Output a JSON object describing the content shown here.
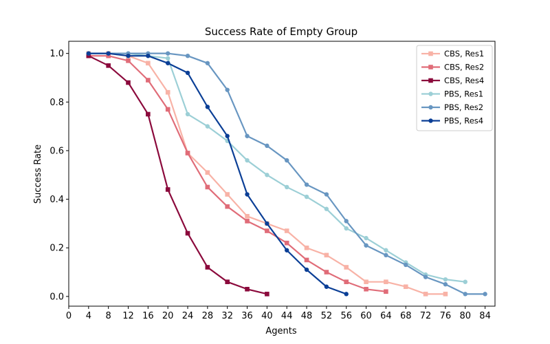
{
  "chart_data": {
    "type": "line",
    "title": "Success Rate of Empty Group",
    "xlabel": "Agents",
    "ylabel": "Success Rate",
    "xlim": [
      0,
      86
    ],
    "ylim": [
      -0.04,
      1.05
    ],
    "xticks": [
      0,
      4,
      8,
      12,
      16,
      20,
      24,
      28,
      32,
      36,
      40,
      44,
      48,
      52,
      56,
      60,
      64,
      68,
      72,
      76,
      80,
      84
    ],
    "yticks": [
      0.0,
      0.2,
      0.4,
      0.6,
      0.8,
      1.0
    ],
    "ytick_labels": [
      "0.0",
      "0.2",
      "0.4",
      "0.6",
      "0.8",
      "1.0"
    ],
    "grid": false,
    "legend_position": "top-right",
    "series": [
      {
        "name": "CBS, Res1",
        "color": "#f8b2a6",
        "marker": "square",
        "x": [
          4,
          8,
          12,
          16,
          20,
          24,
          28,
          32,
          36,
          40,
          44,
          48,
          52,
          56,
          60,
          64,
          68,
          72,
          76
        ],
        "y": [
          1.0,
          1.0,
          0.99,
          0.96,
          0.84,
          0.59,
          0.51,
          0.42,
          0.33,
          0.3,
          0.27,
          0.2,
          0.17,
          0.12,
          0.06,
          0.06,
          0.04,
          0.01,
          0.01
        ]
      },
      {
        "name": "CBS, Res2",
        "color": "#e06c78",
        "marker": "square",
        "x": [
          4,
          8,
          12,
          16,
          20,
          24,
          28,
          32,
          36,
          40,
          44,
          48,
          52,
          56,
          60,
          64
        ],
        "y": [
          0.99,
          0.99,
          0.97,
          0.89,
          0.77,
          0.59,
          0.45,
          0.37,
          0.31,
          0.27,
          0.22,
          0.15,
          0.1,
          0.06,
          0.03,
          0.02
        ]
      },
      {
        "name": "CBS, Res4",
        "color": "#8b0a3c",
        "marker": "square",
        "x": [
          4,
          8,
          12,
          16,
          20,
          24,
          28,
          32,
          36,
          40
        ],
        "y": [
          0.99,
          0.95,
          0.88,
          0.75,
          0.44,
          0.26,
          0.12,
          0.06,
          0.03,
          0.01
        ]
      },
      {
        "name": "PBS, Res1",
        "color": "#9ccfd6",
        "marker": "circle",
        "x": [
          4,
          8,
          12,
          16,
          20,
          24,
          28,
          32,
          36,
          40,
          44,
          48,
          52,
          56,
          60,
          64,
          68,
          72,
          76,
          80
        ],
        "y": [
          1.0,
          1.0,
          1.0,
          0.99,
          0.98,
          0.75,
          0.7,
          0.64,
          0.56,
          0.5,
          0.45,
          0.41,
          0.36,
          0.28,
          0.24,
          0.19,
          0.14,
          0.09,
          0.07,
          0.06
        ]
      },
      {
        "name": "PBS, Res2",
        "color": "#6896c1",
        "marker": "circle",
        "x": [
          4,
          8,
          12,
          16,
          20,
          24,
          28,
          32,
          36,
          40,
          44,
          48,
          52,
          56,
          60,
          64,
          68,
          72,
          76,
          80,
          84
        ],
        "y": [
          1.0,
          1.0,
          1.0,
          1.0,
          1.0,
          0.99,
          0.96,
          0.85,
          0.66,
          0.62,
          0.56,
          0.46,
          0.42,
          0.31,
          0.21,
          0.17,
          0.13,
          0.08,
          0.05,
          0.01,
          0.01
        ]
      },
      {
        "name": "PBS, Res4",
        "color": "#0b3f96",
        "marker": "circle",
        "x": [
          4,
          8,
          12,
          16,
          20,
          24,
          28,
          32,
          36,
          40,
          44,
          48,
          52,
          56
        ],
        "y": [
          1.0,
          1.0,
          0.99,
          0.99,
          0.96,
          0.92,
          0.78,
          0.66,
          0.42,
          0.3,
          0.19,
          0.11,
          0.04,
          0.01
        ]
      }
    ]
  }
}
